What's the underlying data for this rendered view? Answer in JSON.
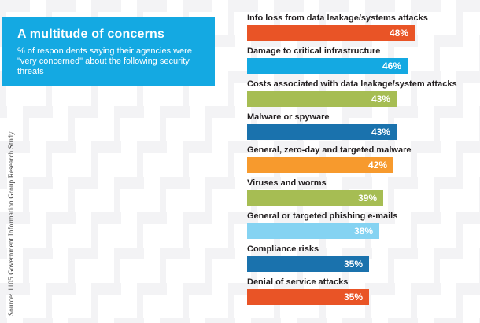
{
  "header": {
    "title": "A multitude of concerns",
    "subtitle": "% of respon dents saying their agencies were \"very concerned\" about the following security threats"
  },
  "source_note": "Source: 1105 Government Information Group Research Study",
  "colors": {
    "cyan": "#14a9e2",
    "orange_red": "#e95426",
    "olive": "#a6bd53",
    "steel_blue": "#1a72ad",
    "orange": "#f79a2d",
    "light_blue": "#85d3f2",
    "label_text": "#231f20",
    "pattern_gray": "#f3f3f5"
  },
  "chart_data": {
    "type": "bar",
    "orientation": "horizontal",
    "title": "A multitude of concerns",
    "unit": "%",
    "xlim": [
      0,
      50
    ],
    "grid": false,
    "legend": "none",
    "categories": [
      "Info loss from data leakage/systems attacks",
      "Damage to critical infrastructure",
      "Costs associated with data leakage/system attacks",
      "Malware or spyware",
      "General, zero-day and targeted malware",
      "Viruses and worms",
      "General or targeted phishing e-mails",
      "Compliance risks",
      "Denial of service attacks"
    ],
    "values": [
      48,
      46,
      43,
      43,
      42,
      39,
      38,
      35,
      35
    ],
    "value_labels": [
      "48%",
      "46%",
      "43%",
      "43%",
      "42%",
      "39%",
      "38%",
      "35%",
      "35%"
    ],
    "bar_colors": [
      "orange_red",
      "cyan",
      "olive",
      "steel_blue",
      "orange",
      "olive",
      "light_blue",
      "steel_blue",
      "orange_red"
    ]
  }
}
